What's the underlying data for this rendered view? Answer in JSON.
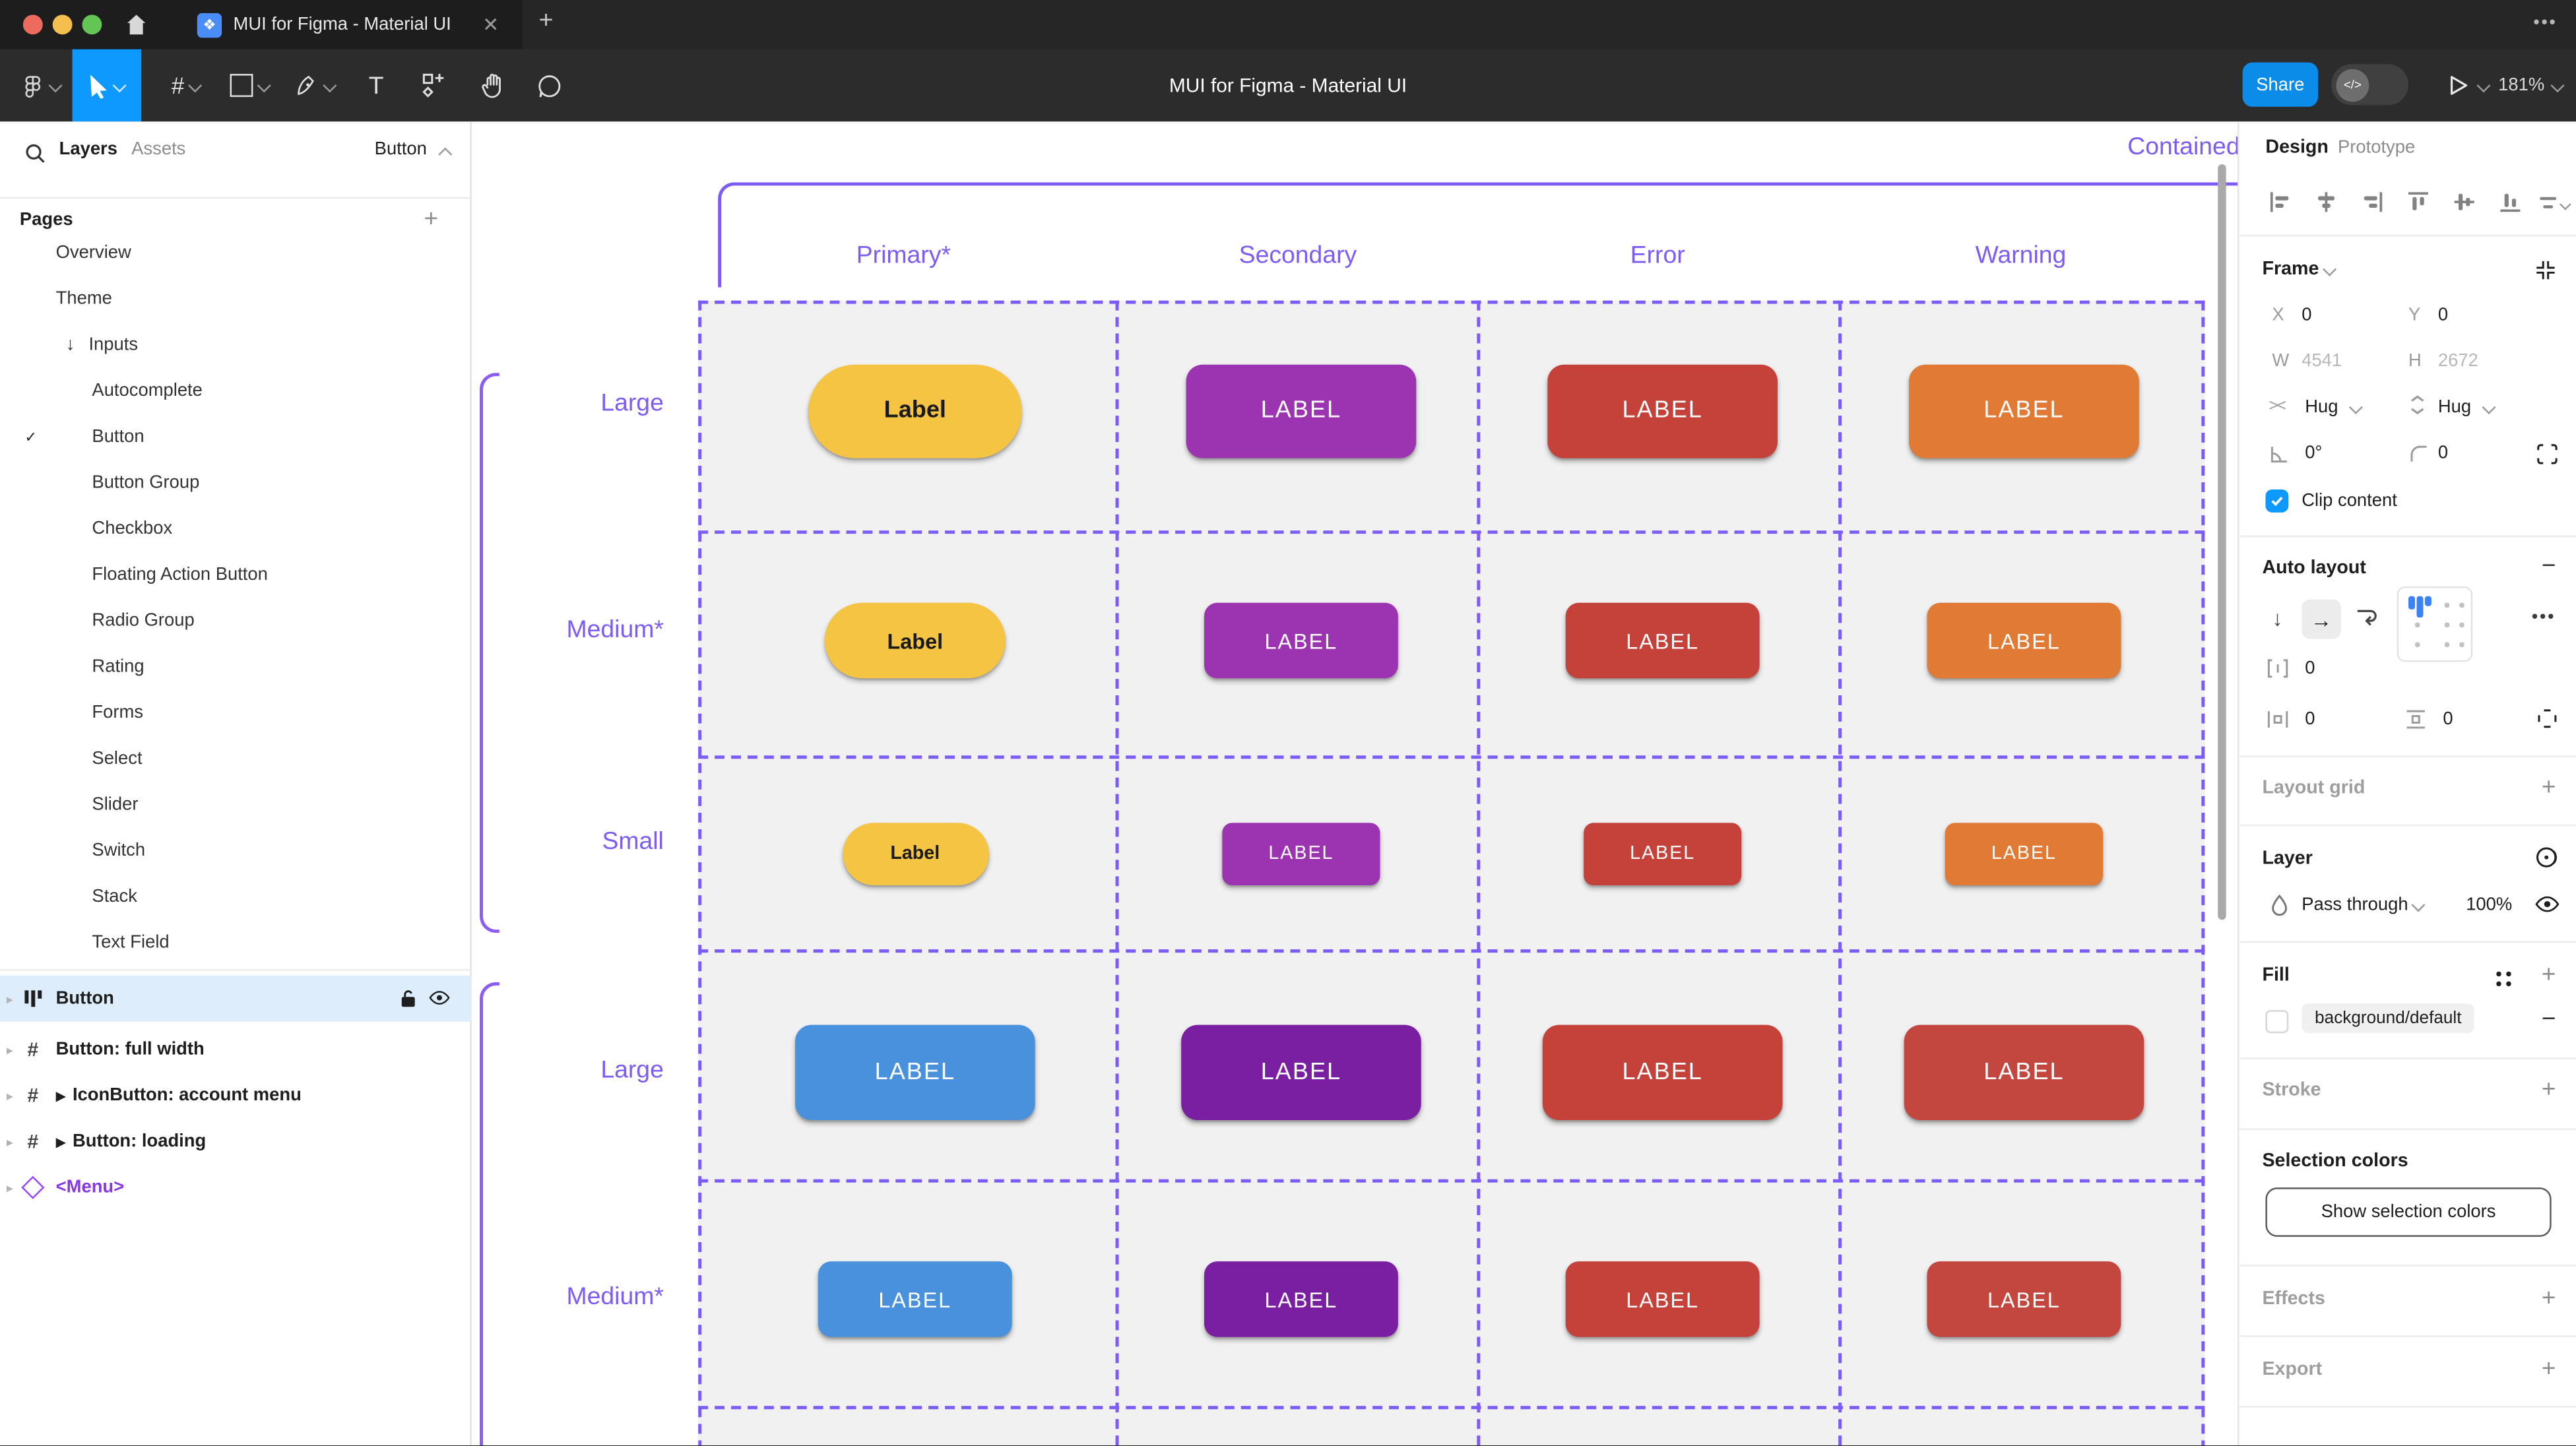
{
  "window": {
    "tab_title": "MUI for Figma - Material UI",
    "traffic_lights": [
      "#ED6A5E",
      "#F5BF4F",
      "#62C554"
    ]
  },
  "toolbar": {
    "doc_title": "MUI for Figma - Material UI",
    "share_label": "Share",
    "dev_toggle_glyph": "</>",
    "zoom_level": "181%"
  },
  "sidebar": {
    "tabs": {
      "layers": "Layers",
      "assets": "Assets"
    },
    "page_selector": "Button",
    "pages_header": "Pages",
    "pages": [
      {
        "label": "Overview",
        "indent": 1
      },
      {
        "label": "Theme",
        "indent": 1
      },
      {
        "label": "Inputs",
        "indent": 1,
        "arrow": "↓"
      },
      {
        "label": "Autocomplete",
        "indent": 2
      },
      {
        "label": "Button",
        "indent": 2,
        "checked": true
      },
      {
        "label": "Button Group",
        "indent": 2
      },
      {
        "label": "Checkbox",
        "indent": 2
      },
      {
        "label": "Floating Action Button",
        "indent": 2
      },
      {
        "label": "Radio Group",
        "indent": 2
      },
      {
        "label": "Rating",
        "indent": 2
      },
      {
        "label": "Forms",
        "indent": 2
      },
      {
        "label": "Select",
        "indent": 2
      },
      {
        "label": "Slider",
        "indent": 2
      },
      {
        "label": "Switch",
        "indent": 2
      },
      {
        "label": "Stack",
        "indent": 2
      },
      {
        "label": "Text Field",
        "indent": 2
      }
    ],
    "layers": [
      {
        "label": "Button",
        "icon": "autolayout",
        "selected": true
      },
      {
        "label": "Button: full width",
        "icon": "frame"
      },
      {
        "label": "IconButton: account menu",
        "icon": "frame",
        "component": true
      },
      {
        "label": "Button: loading",
        "icon": "frame",
        "component": true
      },
      {
        "label": "<Menu>",
        "icon": "instance",
        "purple": true
      }
    ]
  },
  "canvas": {
    "section_title": "Contained",
    "columns": [
      "Primary*",
      "Secondary",
      "Error",
      "Warning"
    ],
    "row_labels": [
      "Large",
      "Medium*",
      "Small",
      "Large",
      "Medium*"
    ],
    "accent": "#7D5CF6",
    "rows": [
      {
        "size": "large",
        "buttons": [
          {
            "text": "Label",
            "bg": "#F5C442",
            "fg": "#1A1A1A",
            "variant": "pill"
          },
          {
            "text": "LABEL",
            "bg": "#9C34B2",
            "fg": "#FFFFFF",
            "variant": "rect"
          },
          {
            "text": "LABEL",
            "bg": "#C4423A",
            "fg": "#FFFFFF",
            "variant": "rect"
          },
          {
            "text": "LABEL",
            "bg": "#E17A34",
            "fg": "#FFFFFF",
            "variant": "rect"
          }
        ]
      },
      {
        "size": "medium",
        "buttons": [
          {
            "text": "Label",
            "bg": "#F5C442",
            "fg": "#1A1A1A",
            "variant": "pill"
          },
          {
            "text": "LABEL",
            "bg": "#9C34B2",
            "fg": "#FFFFFF",
            "variant": "rect"
          },
          {
            "text": "LABEL",
            "bg": "#C4423A",
            "fg": "#FFFFFF",
            "variant": "rect"
          },
          {
            "text": "LABEL",
            "bg": "#E17A34",
            "fg": "#FFFFFF",
            "variant": "rect"
          }
        ]
      },
      {
        "size": "small",
        "buttons": [
          {
            "text": "Label",
            "bg": "#F5C442",
            "fg": "#1A1A1A",
            "variant": "pill"
          },
          {
            "text": "LABEL",
            "bg": "#9C34B2",
            "fg": "#FFFFFF",
            "variant": "rect"
          },
          {
            "text": "LABEL",
            "bg": "#C4423A",
            "fg": "#FFFFFF",
            "variant": "rect"
          },
          {
            "text": "LABEL",
            "bg": "#E17A34",
            "fg": "#FFFFFF",
            "variant": "rect"
          }
        ]
      },
      {
        "size": "large",
        "buttons": [
          {
            "text": "LABEL",
            "bg": "#4991DD",
            "fg": "#FFFFFF",
            "variant": "rect"
          },
          {
            "text": "LABEL",
            "bg": "#7B1FA2",
            "fg": "#FFFFFF",
            "variant": "rect"
          },
          {
            "text": "LABEL",
            "bg": "#C4423A",
            "fg": "#FFFFFF",
            "variant": "rect"
          },
          {
            "text": "LABEL",
            "bg": "#C3473E",
            "fg": "#FFFFFF",
            "variant": "rect"
          }
        ]
      },
      {
        "size": "medium",
        "buttons": [
          {
            "text": "LABEL",
            "bg": "#4991DD",
            "fg": "#FFFFFF",
            "variant": "rect"
          },
          {
            "text": "LABEL",
            "bg": "#7B1FA2",
            "fg": "#FFFFFF",
            "variant": "rect"
          },
          {
            "text": "LABEL",
            "bg": "#C4423A",
            "fg": "#FFFFFF",
            "variant": "rect"
          },
          {
            "text": "LABEL",
            "bg": "#C3473E",
            "fg": "#FFFFFF",
            "variant": "rect"
          }
        ]
      }
    ]
  },
  "right_panel": {
    "tabs": {
      "design": "Design",
      "prototype": "Prototype"
    },
    "frame": {
      "title": "Frame",
      "x_label": "X",
      "x_value": "0",
      "y_label": "Y",
      "y_value": "0",
      "w_label": "W",
      "w_value": "4541",
      "h_label": "H",
      "h_value": "2672",
      "hug_h": "Hug",
      "hug_v": "Hug",
      "rotation": "0°",
      "corner_radius": "0",
      "clip_label": "Clip content"
    },
    "auto_layout": {
      "title": "Auto layout",
      "gap": "0",
      "padding_h": "0",
      "padding_v": "0"
    },
    "layout_grid": "Layout grid",
    "layer": {
      "title": "Layer",
      "blend_mode": "Pass through",
      "opacity": "100%"
    },
    "fill": {
      "title": "Fill",
      "token": "background/default"
    },
    "stroke": "Stroke",
    "selection_colors": {
      "title": "Selection colors",
      "button": "Show selection colors"
    },
    "effects": "Effects",
    "export": "Export",
    "accent_blue": "#0D99FF"
  }
}
